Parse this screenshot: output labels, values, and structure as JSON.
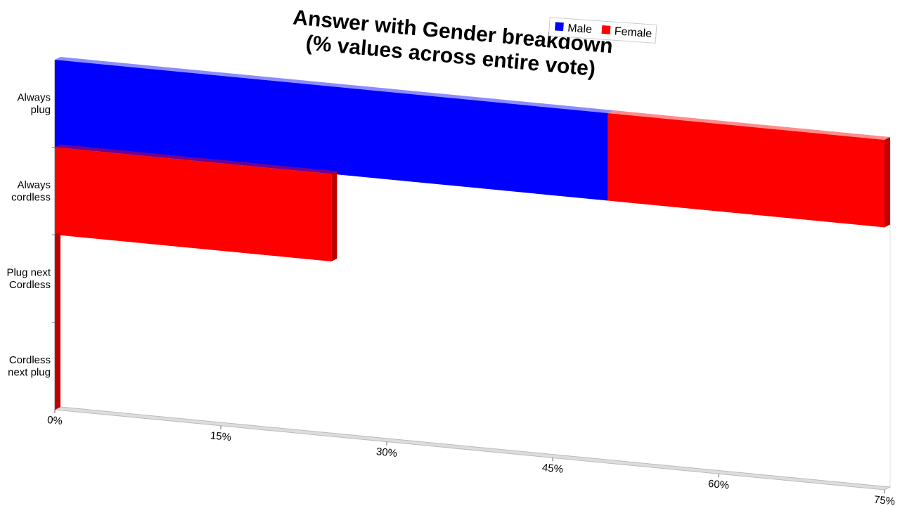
{
  "chart_data": {
    "type": "bar",
    "orientation": "horizontal",
    "stacked": true,
    "title": "Answer with Gender breakdown\n(% values across entire vote)",
    "categories": [
      "Always\nplug",
      "Always\ncordless",
      "Plug next\nCordless",
      "Cordless\nnext plug"
    ],
    "series": [
      {
        "name": "Male",
        "color": "#0000ff",
        "values": [
          50,
          0,
          0,
          0
        ]
      },
      {
        "name": "Female",
        "color": "#ff0000",
        "values": [
          25,
          25,
          0,
          0
        ]
      }
    ],
    "xlim": [
      0,
      75
    ],
    "xticks": [
      {
        "value": 0,
        "label": "0%"
      },
      {
        "value": 15,
        "label": "15%"
      },
      {
        "value": 30,
        "label": "30%"
      },
      {
        "value": 45,
        "label": "45%"
      },
      {
        "value": 60,
        "label": "60%"
      },
      {
        "value": 75,
        "label": "75%"
      }
    ],
    "legend": "top-right"
  }
}
